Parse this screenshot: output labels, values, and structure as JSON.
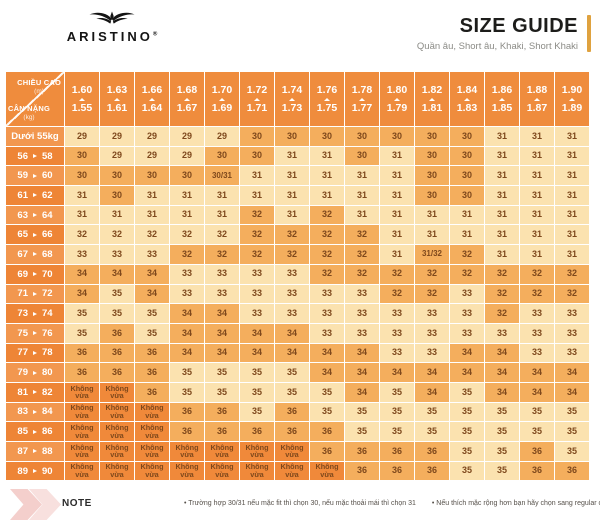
{
  "brand": {
    "name": "ARISTINO",
    "registered": "®",
    "logo_icon": "eagle-wings"
  },
  "header": {
    "title": "SIZE GUIDE",
    "subtitle": "Quần âu, Short âu, Khaki, Short Khaki",
    "accent_color": "#DFA23F"
  },
  "table": {
    "corner": {
      "top_label": "CHIỀU CAO",
      "top_unit": "(m)",
      "bottom_label": "CÂN NẶNG",
      "bottom_unit": "(kg)"
    },
    "icons": {
      "height_range": "triangle-up-icon",
      "weight_range": "triangle-right-icon"
    },
    "colors": {
      "header_orange": "#EF8C3D",
      "cell_light": "#FBE2AF",
      "cell_dark": "#F4AE5D",
      "not_fit": "#F0893A",
      "cell_text": "#7E481C"
    },
    "height_columns": [
      {
        "max": "1.60",
        "min": "1.55"
      },
      {
        "max": "1.63",
        "min": "1.61"
      },
      {
        "max": "1.66",
        "min": "1.64"
      },
      {
        "max": "1.68",
        "min": "1.67"
      },
      {
        "max": "1.70",
        "min": "1.69"
      },
      {
        "max": "1.72",
        "min": "1.71"
      },
      {
        "max": "1.74",
        "min": "1.73"
      },
      {
        "max": "1.76",
        "min": "1.75"
      },
      {
        "max": "1.78",
        "min": "1.77"
      },
      {
        "max": "1.80",
        "min": "1.79"
      },
      {
        "max": "1.82",
        "min": "1.81"
      },
      {
        "max": "1.84",
        "min": "1.83"
      },
      {
        "max": "1.86",
        "min": "1.85"
      },
      {
        "max": "1.88",
        "min": "1.87"
      },
      {
        "max": "1.90",
        "min": "1.89"
      }
    ],
    "rows": [
      {
        "weight": {
          "text": "Dưới 55kg"
        },
        "values": [
          "29",
          "29",
          "29",
          "29",
          "29",
          "30",
          "30",
          "30",
          "30",
          "30",
          "30",
          "30",
          "31",
          "31",
          "31"
        ],
        "shades": "000001111111000"
      },
      {
        "weight": {
          "from": "56",
          "to": "58"
        },
        "values": [
          "30",
          "29",
          "29",
          "29",
          "30",
          "30",
          "31",
          "31",
          "30",
          "31",
          "30",
          "30",
          "31",
          "31",
          "31"
        ],
        "shades": "100011001011000"
      },
      {
        "weight": {
          "from": "59",
          "to": "60"
        },
        "values": [
          "30",
          "30",
          "30",
          "30",
          "30/31",
          "31",
          "31",
          "31",
          "31",
          "31",
          "30",
          "30",
          "31",
          "31",
          "31"
        ],
        "shades": "111110000011000"
      },
      {
        "weight": {
          "from": "61",
          "to": "62"
        },
        "values": [
          "31",
          "30",
          "31",
          "31",
          "31",
          "31",
          "31",
          "31",
          "31",
          "31",
          "30",
          "30",
          "31",
          "31",
          "31"
        ],
        "shades": "010000000011000"
      },
      {
        "weight": {
          "from": "63",
          "to": "64"
        },
        "values": [
          "31",
          "31",
          "31",
          "31",
          "31",
          "32",
          "31",
          "32",
          "31",
          "31",
          "31",
          "31",
          "31",
          "31",
          "31"
        ],
        "shades": "000001010000000"
      },
      {
        "weight": {
          "from": "65",
          "to": "66"
        },
        "values": [
          "32",
          "32",
          "32",
          "32",
          "32",
          "32",
          "32",
          "32",
          "32",
          "31",
          "31",
          "31",
          "31",
          "31",
          "31"
        ],
        "shades": "000001111000000"
      },
      {
        "weight": {
          "from": "67",
          "to": "68"
        },
        "values": [
          "33",
          "33",
          "33",
          "32",
          "32",
          "32",
          "32",
          "32",
          "32",
          "31",
          "31/32",
          "32",
          "31",
          "31",
          "31"
        ],
        "shades": "000111111011000"
      },
      {
        "weight": {
          "from": "69",
          "to": "70"
        },
        "values": [
          "34",
          "34",
          "34",
          "33",
          "33",
          "33",
          "33",
          "32",
          "32",
          "32",
          "32",
          "32",
          "32",
          "32",
          "32"
        ],
        "shades": "111000011111111"
      },
      {
        "weight": {
          "from": "71",
          "to": "72"
        },
        "values": [
          "34",
          "35",
          "34",
          "33",
          "33",
          "33",
          "33",
          "33",
          "33",
          "32",
          "32",
          "33",
          "32",
          "32",
          "32"
        ],
        "shades": "101000000110111"
      },
      {
        "weight": {
          "from": "73",
          "to": "74"
        },
        "values": [
          "35",
          "35",
          "35",
          "34",
          "34",
          "33",
          "33",
          "33",
          "33",
          "33",
          "33",
          "33",
          "32",
          "33",
          "33"
        ],
        "shades": "000110000000100"
      },
      {
        "weight": {
          "from": "75",
          "to": "76"
        },
        "values": [
          "35",
          "36",
          "35",
          "34",
          "34",
          "34",
          "34",
          "33",
          "33",
          "33",
          "33",
          "33",
          "33",
          "33",
          "33"
        ],
        "shades": "010111100000000"
      },
      {
        "weight": {
          "from": "77",
          "to": "78"
        },
        "values": [
          "36",
          "36",
          "36",
          "34",
          "34",
          "34",
          "34",
          "34",
          "34",
          "33",
          "33",
          "34",
          "34",
          "33",
          "33"
        ],
        "shades": "111111111001100"
      },
      {
        "weight": {
          "from": "79",
          "to": "80"
        },
        "values": [
          "36",
          "36",
          "36",
          "35",
          "35",
          "35",
          "35",
          "34",
          "34",
          "34",
          "34",
          "34",
          "34",
          "34",
          "34"
        ],
        "shades": "111000011111111"
      },
      {
        "weight": {
          "from": "81",
          "to": "82"
        },
        "values": [
          "Không vừa",
          "Không vừa",
          "36",
          "35",
          "35",
          "35",
          "35",
          "35",
          "34",
          "35",
          "34",
          "35",
          "34",
          "34",
          "34"
        ],
        "shades": "221000001010111"
      },
      {
        "weight": {
          "from": "83",
          "to": "84"
        },
        "values": [
          "Không vừa",
          "Không vừa",
          "Không vừa",
          "36",
          "36",
          "35",
          "36",
          "35",
          "35",
          "35",
          "35",
          "35",
          "35",
          "35",
          "35"
        ],
        "shades": "222110100000000"
      },
      {
        "weight": {
          "from": "85",
          "to": "86"
        },
        "values": [
          "Không vừa",
          "Không vừa",
          "Không vừa",
          "36",
          "36",
          "36",
          "36",
          "36",
          "35",
          "35",
          "35",
          "35",
          "35",
          "35",
          "35"
        ],
        "shades": "222111110000000"
      },
      {
        "weight": {
          "from": "87",
          "to": "88"
        },
        "values": [
          "Không vừa",
          "Không vừa",
          "Không vừa",
          "Không vừa",
          "Không vừa",
          "Không vừa",
          "Không vừa",
          "36",
          "36",
          "36",
          "36",
          "35",
          "35",
          "36",
          "35"
        ],
        "shades": "222222211110010"
      },
      {
        "weight": {
          "from": "89",
          "to": "90"
        },
        "values": [
          "Không vừa",
          "Không vừa",
          "Không vừa",
          "Không vừa",
          "Không vừa",
          "Không vừa",
          "Không vừa",
          "Không vừa",
          "36",
          "36",
          "36",
          "35",
          "35",
          "36",
          "36"
        ],
        "shades": "222222221110011"
      }
    ]
  },
  "note": {
    "label": "NOTE",
    "bullet": "•",
    "items": [
      "Trường hợp 30/31 nếu mặc fit thì chọn 30, nếu mặc thoải mái thì chọn 31",
      "Nếu thích mặc rộng hơn bạn hãy chọn sang regular cùng size."
    ]
  }
}
